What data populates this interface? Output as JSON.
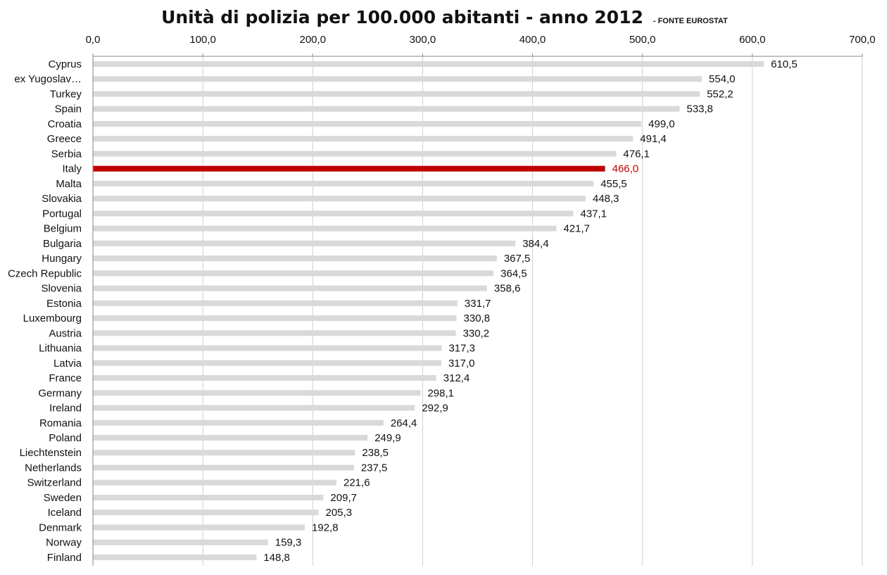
{
  "chart_data": {
    "type": "bar",
    "orientation": "horizontal",
    "title": "Unità di polizia per 100.000 abitanti - anno 2012",
    "subtitle": "- FONTE EUROSTAT",
    "xlabel": "",
    "ylabel": "",
    "xlim": [
      0,
      700
    ],
    "x_ticks": [
      0,
      100,
      200,
      300,
      400,
      500,
      600,
      700
    ],
    "x_tick_labels": [
      "0,0",
      "100,0",
      "200,0",
      "300,0",
      "400,0",
      "500,0",
      "600,0",
      "700,0"
    ],
    "grid": "vertical",
    "legend": "none",
    "colors": {
      "bar": "#d9d9d9",
      "highlight": "#c00000",
      "grid": "#cfcfcf",
      "text": "#111111"
    },
    "highlight": "Italy",
    "categories": [
      "Cyprus",
      "ex Yugoslav…",
      "Turkey",
      "Spain",
      "Croatia",
      "Greece",
      "Serbia",
      "Italy",
      "Malta",
      "Slovakia",
      "Portugal",
      "Belgium",
      "Bulgaria",
      "Hungary",
      "Czech Republic",
      "Slovenia",
      "Estonia",
      "Luxembourg",
      "Austria",
      "Lithuania",
      "Latvia",
      "France",
      "Germany",
      "Ireland",
      "Romania",
      "Poland",
      "Liechtenstein",
      "Netherlands",
      "Switzerland",
      "Sweden",
      "Iceland",
      "Denmark",
      "Norway",
      "Finland"
    ],
    "values": [
      610.5,
      554.0,
      552.2,
      533.8,
      499.0,
      491.4,
      476.1,
      466.0,
      455.5,
      448.3,
      437.1,
      421.7,
      384.4,
      367.5,
      364.5,
      358.6,
      331.7,
      330.8,
      330.2,
      317.3,
      317.0,
      312.4,
      298.1,
      292.9,
      264.4,
      249.9,
      238.5,
      237.5,
      221.6,
      209.7,
      205.3,
      192.8,
      159.3,
      148.8
    ],
    "value_labels": [
      "610,5",
      "554,0",
      "552,2",
      "533,8",
      "499,0",
      "491,4",
      "476,1",
      "466,0",
      "455,5",
      "448,3",
      "437,1",
      "421,7",
      "384,4",
      "367,5",
      "364,5",
      "358,6",
      "331,7",
      "330,8",
      "330,2",
      "317,3",
      "317,0",
      "312,4",
      "298,1",
      "292,9",
      "264,4",
      "249,9",
      "238,5",
      "237,5",
      "221,6",
      "209,7",
      "205,3",
      "192,8",
      "159,3",
      "148,8"
    ]
  }
}
